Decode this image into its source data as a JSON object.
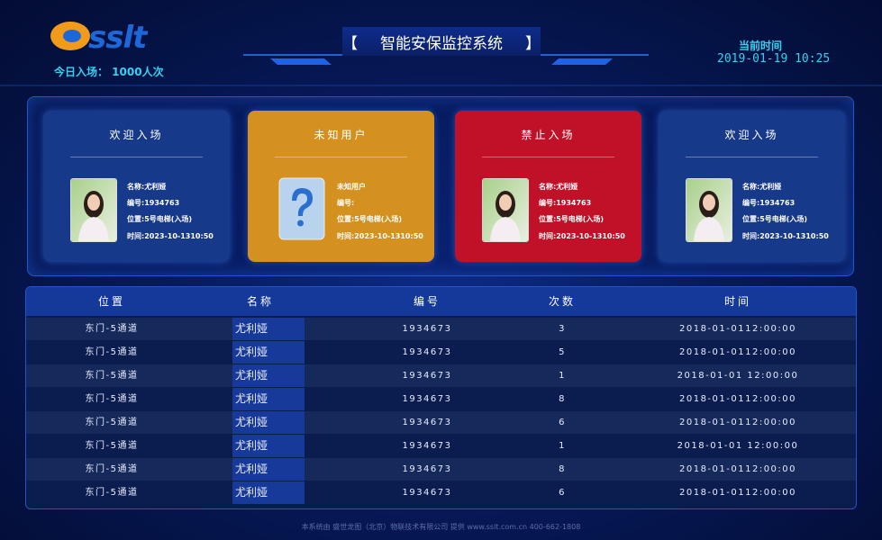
{
  "header": {
    "logo_text": "sslt",
    "today_entry": "今日入场：  1000人次",
    "title_left": "【",
    "title": "智能安保监控系统",
    "title_right": "】",
    "time_label": "当前时间",
    "time_value": "2019-01-19 10:25"
  },
  "cards": [
    {
      "title": "欢迎入场",
      "color": "#17398a",
      "lines": [
        "名称:尤利娅",
        "编号:1934763",
        "位置:5号电梯(入场)",
        "时间:2023-10-1310:50"
      ]
    },
    {
      "title": "未知用户",
      "color": "#d4911f",
      "lines": [
        "未知用户",
        "编号:",
        "位置:5号电梯(入场)",
        "时间:2023-10-1310:50"
      ]
    },
    {
      "title": "禁止入场",
      "color": "#c01128",
      "lines": [
        "名称:尤利娅",
        "编号:1934763",
        "位置:5号电梯(入场)",
        "时间:2023-10-1310:50"
      ]
    },
    {
      "title": "欢迎入场",
      "color": "#17398a",
      "lines": [
        "名称:尤利娅",
        "编号:1934763",
        "位置:5号电梯(入场)",
        "时间:2023-10-1310:50"
      ]
    }
  ],
  "table": {
    "headers": [
      "位置",
      "名称",
      "编号",
      "次数",
      "时间"
    ],
    "rows": [
      [
        "东门-5通道",
        "尤利娅",
        "1934673",
        "3",
        "2018-01-0112:00:00"
      ],
      [
        "东门-5通道",
        "尤利娅",
        "1934673",
        "5",
        "2018-01-0112:00:00"
      ],
      [
        "东门-5通道",
        "尤利娅",
        "1934673",
        "1",
        "2018-01-01 12:00:00"
      ],
      [
        "东门-5通道",
        "尤利娅",
        "1934673",
        "8",
        "2018-01-0112:00:00"
      ],
      [
        "东门-5通道",
        "尤利娅",
        "1934673",
        "6",
        "2018-01-0112:00:00"
      ],
      [
        "东门-5通道",
        "尤利娅",
        "1934673",
        "1",
        "2018-01-01 12:00:00"
      ],
      [
        "东门-5通道",
        "尤利娅",
        "1934673",
        "8",
        "2018-01-0112:00:00"
      ],
      [
        "东门-5通道",
        "尤利娅",
        "1934673",
        "6",
        "2018-01-0112:00:00"
      ]
    ]
  },
  "footer": "本系统由 盛世龙图（北京）物联技术有限公司 提供  www.sslt.com.cn   400-662-1808"
}
